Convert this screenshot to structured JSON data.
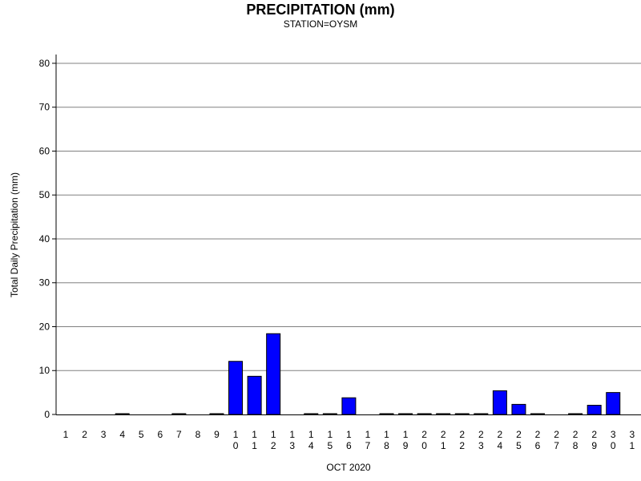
{
  "chart_data": {
    "type": "bar",
    "title": "PRECIPITATION (mm)",
    "subtitle": "STATION=OYSM",
    "xlabel": "OCT 2020",
    "ylabel": "Total Daily Precipitation (mm)",
    "ylim": [
      0,
      82
    ],
    "yticks": [
      0,
      10,
      20,
      30,
      40,
      50,
      60,
      70,
      80
    ],
    "grid": true,
    "categories": [
      "1",
      "2",
      "3",
      "4",
      "5",
      "6",
      "7",
      "8",
      "9",
      "10",
      "11",
      "12",
      "13",
      "14",
      "15",
      "16",
      "17",
      "18",
      "19",
      "20",
      "21",
      "22",
      "23",
      "24",
      "25",
      "26",
      "27",
      "28",
      "29",
      "30",
      "31"
    ],
    "values": [
      null,
      null,
      null,
      0.1,
      null,
      null,
      0.1,
      null,
      0.1,
      12.1,
      8.7,
      18.4,
      null,
      0.1,
      0.1,
      3.8,
      null,
      0.1,
      0.1,
      0.1,
      0.1,
      0.1,
      0.1,
      5.4,
      2.3,
      0.1,
      null,
      0.1,
      2.1,
      5.0,
      null
    ],
    "bar_color": "#0000ff"
  }
}
